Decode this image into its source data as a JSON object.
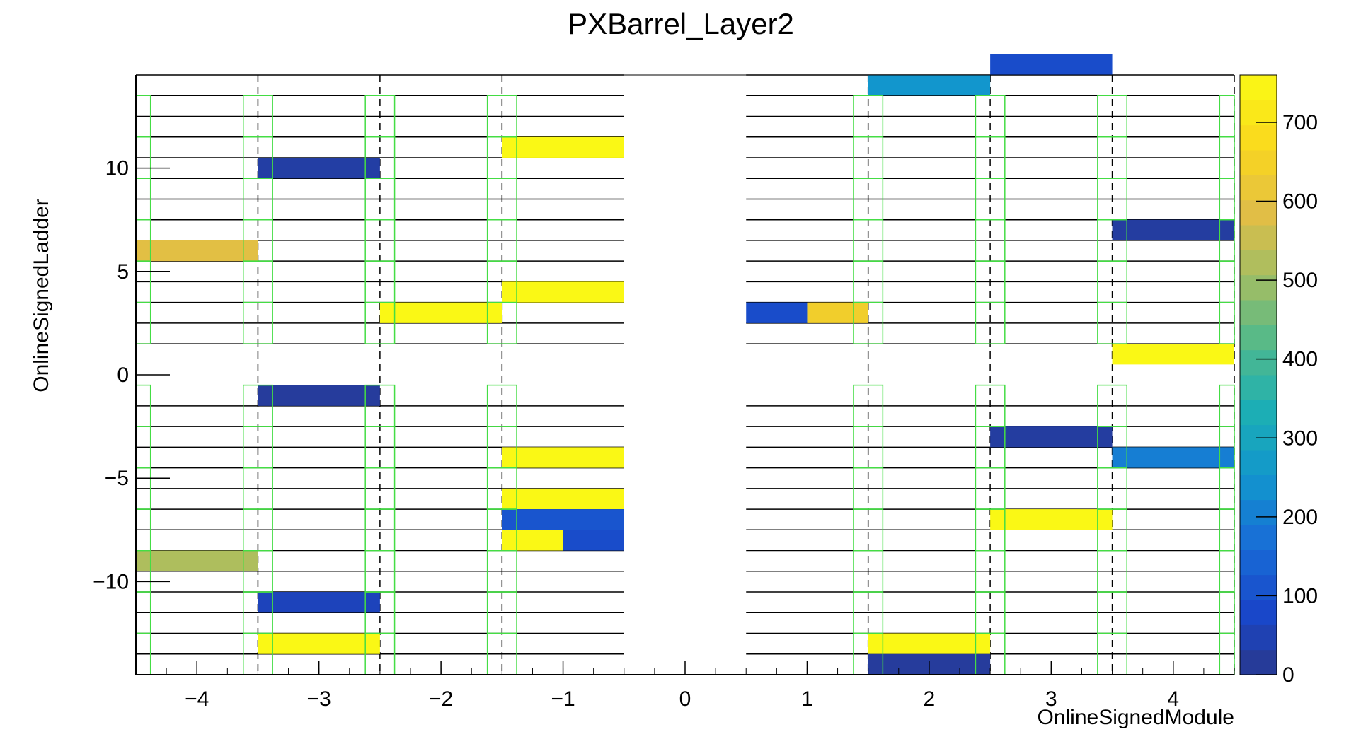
{
  "chart_data": {
    "type": "heatmap",
    "title": "PXBarrel_Layer2",
    "xlabel": "OnlineSignedModule",
    "ylabel": "OnlineSignedLadder",
    "xlim": [
      -4.5,
      4.5
    ],
    "ylim": [
      -14.5,
      14.5
    ],
    "x_ticks": [
      {
        "value": -4,
        "label": "−4"
      },
      {
        "value": -3,
        "label": "−3"
      },
      {
        "value": -2,
        "label": "−2"
      },
      {
        "value": -1,
        "label": "−1"
      },
      {
        "value": 0,
        "label": "0"
      },
      {
        "value": 1,
        "label": "1"
      },
      {
        "value": 2,
        "label": "2"
      },
      {
        "value": 3,
        "label": "3"
      },
      {
        "value": 4,
        "label": "4"
      }
    ],
    "y_ticks": [
      {
        "value": -10,
        "label": "−10"
      },
      {
        "value": -5,
        "label": "−5"
      },
      {
        "value": 0,
        "label": "0"
      },
      {
        "value": 5,
        "label": "5"
      },
      {
        "value": 10,
        "label": "10"
      }
    ],
    "colorbar": {
      "min": 0,
      "max": 760,
      "ticks": [
        {
          "value": 0,
          "label": "0"
        },
        {
          "value": 100,
          "label": "100"
        },
        {
          "value": 200,
          "label": "200"
        },
        {
          "value": 300,
          "label": "300"
        },
        {
          "value": 400,
          "label": "400"
        },
        {
          "value": 500,
          "label": "500"
        },
        {
          "value": 600,
          "label": "600"
        },
        {
          "value": 700,
          "label": "700"
        }
      ]
    },
    "cells": [
      {
        "x": -4,
        "y": 6,
        "value": 590
      },
      {
        "x": -4,
        "y": -9,
        "value": 520
      },
      {
        "x": -3,
        "y": 10,
        "value": 30
      },
      {
        "x": -3,
        "y": -1,
        "value": 20
      },
      {
        "x": -3,
        "y": -11,
        "value": 60
      },
      {
        "x": -3,
        "y": -13,
        "value": 755
      },
      {
        "x": -2,
        "y": 3,
        "value": 755
      },
      {
        "x": -1,
        "y": 11,
        "value": 755
      },
      {
        "x": -1,
        "y": 4,
        "value": 755
      },
      {
        "x": -1,
        "y": -4,
        "value": 755
      },
      {
        "x": -1,
        "y": -6,
        "value": 755
      },
      {
        "x": -1,
        "y": -7,
        "value": 110
      },
      {
        "x": -1.25,
        "y": -8,
        "value": 755,
        "half": true
      },
      {
        "x": -0.75,
        "y": -8,
        "value": 90,
        "half": true
      },
      {
        "x": 1.25,
        "y": 3,
        "value": 640,
        "half": true
      },
      {
        "x": 0.75,
        "y": 3,
        "value": 90,
        "half": true
      },
      {
        "x": 1,
        "y": 3,
        "value": 640,
        "half": true,
        "skip": true
      },
      {
        "x": 2,
        "y": 14,
        "value": 250
      },
      {
        "x": 2,
        "y": -13,
        "value": 755
      },
      {
        "x": 2,
        "y": -14,
        "value": 20
      },
      {
        "x": 3,
        "y": 15,
        "value": 90
      },
      {
        "x": 3,
        "y": -3,
        "value": 25
      },
      {
        "x": 3,
        "y": -7,
        "value": 755
      },
      {
        "x": 4,
        "y": 7,
        "value": 25
      },
      {
        "x": 4,
        "y": 1,
        "value": 755
      },
      {
        "x": 4,
        "y": -4,
        "value": 200
      }
    ]
  }
}
